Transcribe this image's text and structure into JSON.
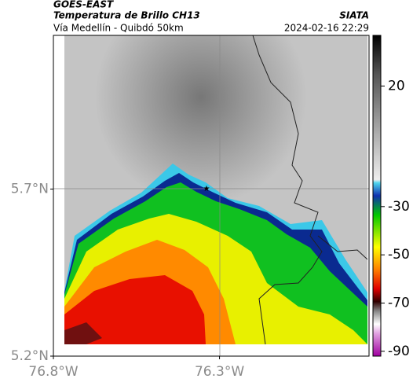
{
  "header": {
    "title": "GOES-EAST",
    "subtitle": "Temperatura de Brillo CH13",
    "route": "Vía Medellín - Quibdó 50km",
    "source": "SIATA",
    "datetime": "2024-02-16 22:29"
  },
  "map": {
    "xlim": [
      -76.8,
      -75.85
    ],
    "ylim": [
      5.2,
      6.16
    ],
    "xticks": [
      {
        "value": -76.8,
        "label": "76.8°W"
      },
      {
        "value": -76.3,
        "label": "76.3°W"
      }
    ],
    "yticks": [
      {
        "value": 5.7,
        "label": "5.7°N"
      },
      {
        "value": 5.2,
        "label": "5.2°N"
      }
    ]
  },
  "colorbar": {
    "lim": [
      -92,
      41
    ],
    "ticks": [
      20,
      -30,
      -50,
      -70,
      -90
    ]
  }
}
